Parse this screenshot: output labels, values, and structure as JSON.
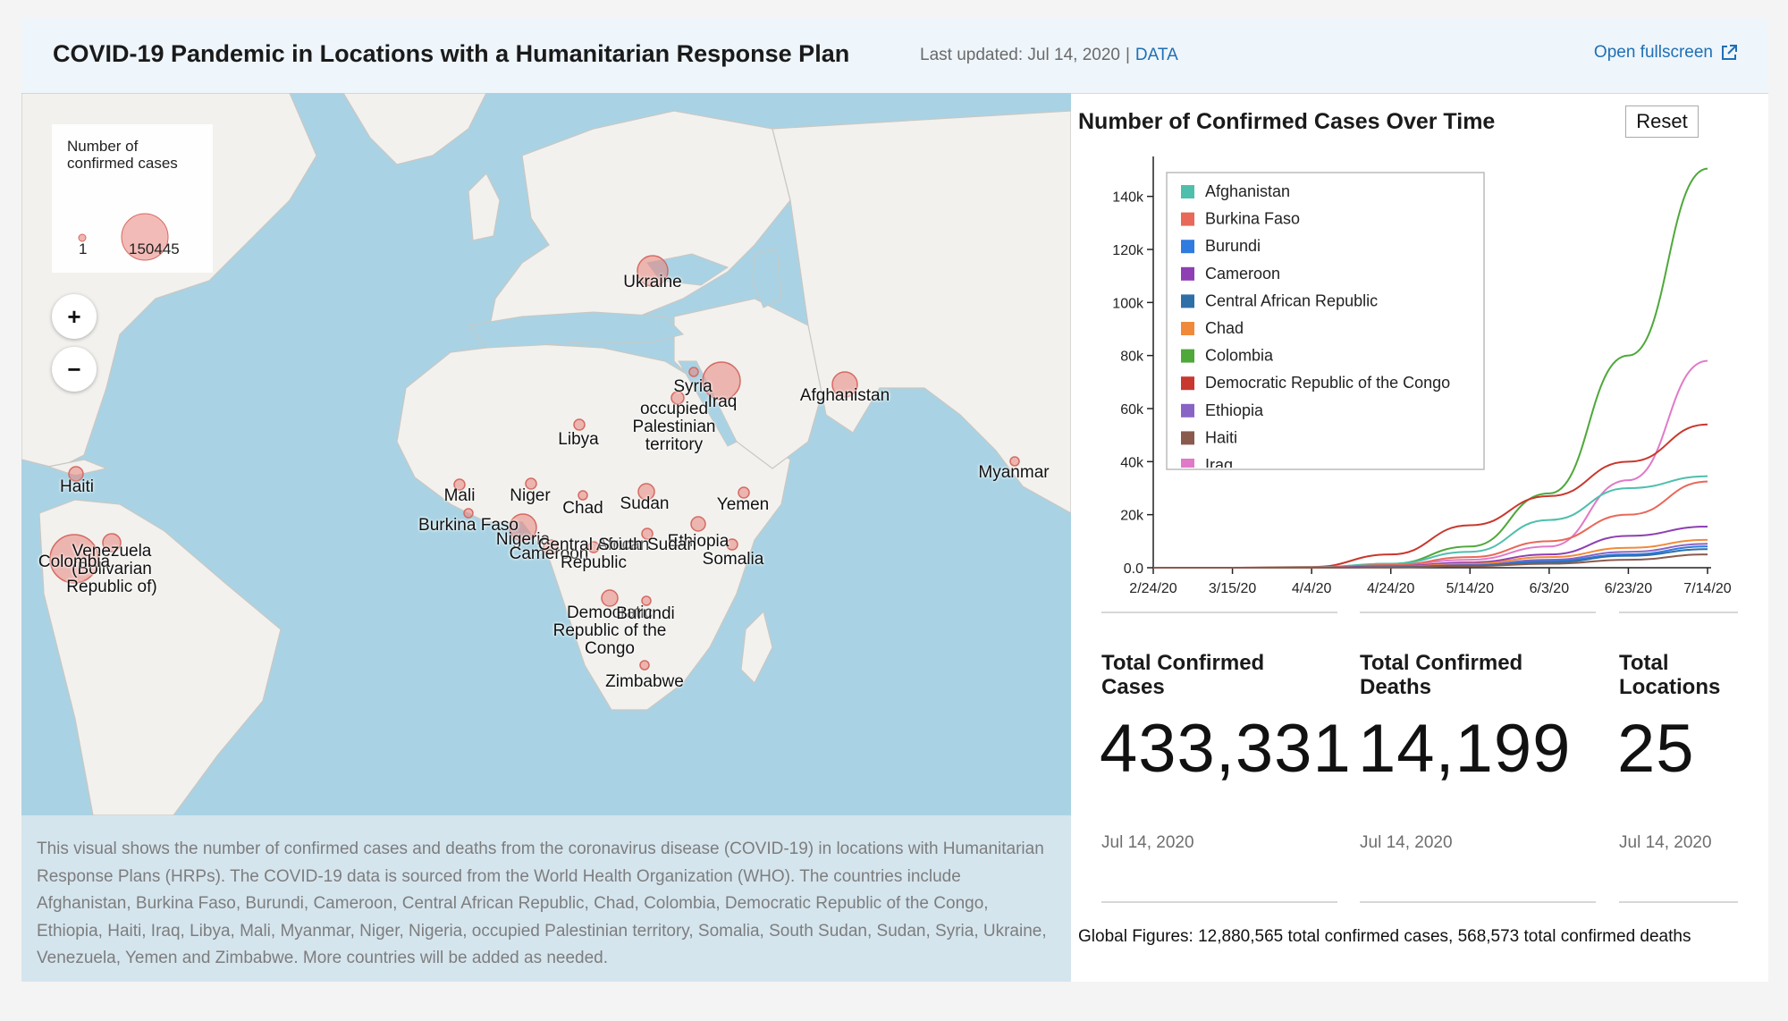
{
  "header": {
    "title": "COVID-19 Pandemic in Locations with a Humanitarian Response Plan",
    "last_updated": "Last updated: Jul 14, 2020",
    "separator": "|",
    "data_link": "DATA",
    "fullscreen": "Open fullscreen",
    "fullscreen_icon": "external-link-icon"
  },
  "map": {
    "legend": {
      "title": "Number of confirmed cases",
      "min": "1",
      "max": "150445"
    },
    "zoom_in": "+",
    "zoom_out": "−",
    "labels": [
      {
        "id": "ukraine",
        "text": "Ukraine"
      },
      {
        "id": "syria",
        "text": "Syria"
      },
      {
        "id": "iraq",
        "text": "Iraq"
      },
      {
        "id": "palestine",
        "text": "occupied\nPalestinian\nterritory"
      },
      {
        "id": "afghanistan",
        "text": "Afghanistan"
      },
      {
        "id": "libya",
        "text": "Libya"
      },
      {
        "id": "myanmar",
        "text": "Myanmar"
      },
      {
        "id": "haiti",
        "text": "Haiti"
      },
      {
        "id": "mali",
        "text": "Mali"
      },
      {
        "id": "niger",
        "text": "Niger"
      },
      {
        "id": "chad",
        "text": "Chad"
      },
      {
        "id": "sudan",
        "text": "Sudan"
      },
      {
        "id": "yemen",
        "text": "Yemen"
      },
      {
        "id": "burkina",
        "text": "Burkina Faso"
      },
      {
        "id": "nigeria",
        "text": "Nigeria"
      },
      {
        "id": "ethiopia",
        "text": "Ethiopia"
      },
      {
        "id": "venezuela",
        "text": "Venezuela\n(Bolivarian\nRepublic of)"
      },
      {
        "id": "colombia",
        "text": "Colombia"
      },
      {
        "id": "cameroon",
        "text": "Cameroon"
      },
      {
        "id": "car",
        "text": "Central African\nRepublic"
      },
      {
        "id": "south_sudan",
        "text": "South Sudan"
      },
      {
        "id": "somalia",
        "text": "Somalia"
      },
      {
        "id": "drc",
        "text": "Democratic\nRepublic of the\nCongo"
      },
      {
        "id": "burundi",
        "text": "Burundi"
      },
      {
        "id": "zimbabwe",
        "text": "Zimbabwe"
      }
    ]
  },
  "description": "This visual shows the number of confirmed cases and deaths from the coronavirus disease (COVID-19) in locations with Humanitarian Response Plans (HRPs). The COVID-19 data is sourced from the World Health Organization (WHO). The countries include Afghanistan, Burkina Faso, Burundi, Cameroon, Central African Republic, Chad, Colombia, Democratic Republic of the Congo, Ethiopia, Haiti, Iraq, Libya, Mali, Myanmar, Niger, Nigeria, occupied Palestinian territory, Somalia, South Sudan, Sudan, Syria, Ukraine, Venezuela, Yemen and Zimbabwe. More countries will be added as needed.",
  "chart_panel": {
    "title": "Number of Confirmed Cases Over Time",
    "reset": "Reset"
  },
  "chart_data": {
    "type": "line",
    "title": "Number of Confirmed Cases Over Time",
    "x_ticks": [
      "2/24/20",
      "3/15/20",
      "4/4/20",
      "4/24/20",
      "5/14/20",
      "6/3/20",
      "6/23/20",
      "7/14/20"
    ],
    "y_ticks": [
      "0.0",
      "20k",
      "40k",
      "60k",
      "80k",
      "100k",
      "120k",
      "140k"
    ],
    "ylim": [
      0,
      150000
    ],
    "grid": false,
    "legend_position": "top-left",
    "legend_entries": [
      {
        "name": "Afghanistan",
        "color": "#4fbfad"
      },
      {
        "name": "Burkina Faso",
        "color": "#e8685a"
      },
      {
        "name": "Burundi",
        "color": "#2f7be0"
      },
      {
        "name": "Cameroon",
        "color": "#8e3fb3"
      },
      {
        "name": "Central African Republic",
        "color": "#2f6fa8"
      },
      {
        "name": "Chad",
        "color": "#f08a3a"
      },
      {
        "name": "Colombia",
        "color": "#4ea83a"
      },
      {
        "name": "Democratic Republic of the Congo",
        "color": "#c8382e"
      },
      {
        "name": "Ethiopia",
        "color": "#8a64c4"
      },
      {
        "name": "Haiti",
        "color": "#8a5a4e"
      },
      {
        "name": "Iraq",
        "color": "#e07ac8"
      }
    ],
    "series": [
      {
        "name": "Colombia",
        "color": "#4ea83a",
        "values": [
          0,
          0,
          0,
          1500,
          8000,
          28000,
          80000,
          150445
        ]
      },
      {
        "name": "Iraq",
        "color": "#e07ac8",
        "values": [
          0,
          0,
          0,
          1000,
          3000,
          8000,
          33000,
          78000
        ]
      },
      {
        "name": "Democratic Republic of the Congo",
        "color": "#c8382e",
        "values": [
          0,
          0,
          300,
          5000,
          16000,
          27000,
          40000,
          54000
        ]
      },
      {
        "name": "Afghanistan",
        "color": "#4fbfad",
        "values": [
          0,
          0,
          200,
          1500,
          6000,
          18000,
          30000,
          34500
        ]
      },
      {
        "name": "Burkina Faso",
        "color": "#e8685a",
        "values": [
          0,
          0,
          100,
          1000,
          4000,
          10000,
          20000,
          32500
        ]
      },
      {
        "name": "Cameroon",
        "color": "#8e3fb3",
        "values": [
          0,
          0,
          0,
          500,
          2000,
          5000,
          12000,
          15500
        ]
      },
      {
        "name": "Chad",
        "color": "#f08a3a",
        "values": [
          0,
          0,
          0,
          300,
          1500,
          4000,
          7500,
          10500
        ]
      },
      {
        "name": "Ethiopia",
        "color": "#8a64c4",
        "values": [
          0,
          0,
          0,
          200,
          1000,
          3000,
          6000,
          9000
        ]
      },
      {
        "name": "Burundi",
        "color": "#2f7be0",
        "values": [
          0,
          0,
          0,
          200,
          800,
          2500,
          5000,
          8000
        ]
      },
      {
        "name": "Central African Republic",
        "color": "#2f6fa8",
        "values": [
          0,
          0,
          0,
          200,
          800,
          2000,
          4500,
          7000
        ]
      },
      {
        "name": "Haiti",
        "color": "#8a5a4e",
        "values": [
          0,
          0,
          0,
          100,
          600,
          1500,
          3000,
          5000
        ]
      }
    ]
  },
  "stats": [
    {
      "id": "cases",
      "label": "Total Confirmed Cases",
      "value": "433,331",
      "date": "Jul 14, 2020"
    },
    {
      "id": "deaths",
      "label": "Total Confirmed Deaths",
      "value": "14,199",
      "date": "Jul 14, 2020"
    },
    {
      "id": "locations",
      "label": "Total Locations",
      "value": "25",
      "date": "Jul 14, 2020"
    }
  ],
  "global_figures": "Global Figures: 12,880,565 total confirmed cases, 568,573 total confirmed deaths",
  "colors": {
    "accent": "#1f6fb5",
    "bubble": "#e8837b",
    "water": "#a9d3e4",
    "land": "#f2f1ee"
  }
}
